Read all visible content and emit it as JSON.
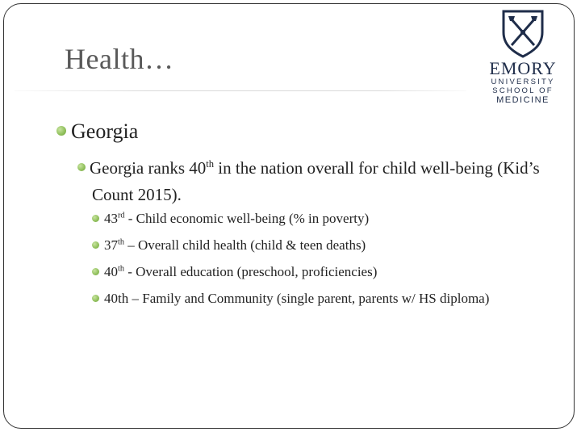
{
  "slide": {
    "title": "Health…",
    "logo": {
      "word": "EMORY",
      "line1": "UNIVERSITY",
      "line2": "SCHOOL OF",
      "line3": "MEDICINE"
    },
    "level1": "Georgia",
    "level2": {
      "pre": "Georgia ranks 40",
      "sup": "th",
      "post": " in the nation overall for child well-being (Kid’s Count 2015)."
    },
    "level3": [
      {
        "num": "43",
        "sup": "rd",
        "text": " - Child economic well-being (% in poverty)"
      },
      {
        "num": "37",
        "sup": "th",
        "text": " – Overall child health (child & teen deaths)"
      },
      {
        "num": "40",
        "sup": "th",
        "text": "  - Overall education (preschool, proficiencies)"
      },
      {
        "num": "40th",
        "sup": "",
        "text": " – Family and Community (single parent, parents w/ HS diploma)"
      }
    ]
  },
  "colors": {
    "bullet": "#8fbf5a",
    "title": "#595959",
    "logo": "#1f2d4a"
  },
  "icons": [
    "emory-shield-icon"
  ]
}
